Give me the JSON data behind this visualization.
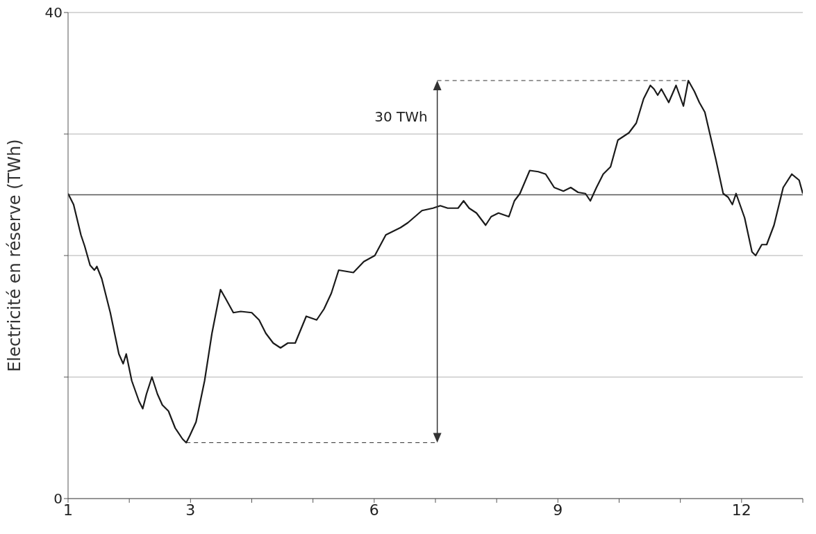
{
  "chart_data": {
    "type": "line",
    "ylabel": "Electricité en réserve (TWh)",
    "x": [
      1.0,
      1.09,
      1.21,
      1.27,
      1.36,
      1.43,
      1.47,
      1.55,
      1.69,
      1.83,
      1.9,
      1.95,
      2.04,
      2.16,
      2.22,
      2.28,
      2.37,
      2.46,
      2.54,
      2.64,
      2.75,
      2.87,
      2.93,
      2.99,
      3.09,
      3.23,
      3.35,
      3.49,
      3.58,
      3.7,
      3.82,
      4.0,
      4.12,
      4.23,
      4.35,
      4.47,
      4.59,
      4.71,
      4.89,
      5.06,
      5.18,
      5.3,
      5.42,
      5.66,
      5.83,
      6.01,
      6.19,
      6.43,
      6.55,
      6.78,
      6.96,
      7.08,
      7.2,
      7.37,
      7.46,
      7.55,
      7.67,
      7.82,
      7.91,
      8.03,
      8.2,
      8.29,
      8.38,
      8.54,
      8.68,
      8.8,
      8.94,
      9.09,
      9.21,
      9.33,
      9.45,
      9.53,
      9.63,
      9.74,
      9.86,
      9.98,
      10.16,
      10.28,
      10.4,
      10.51,
      10.57,
      10.63,
      10.69,
      10.81,
      10.93,
      11.05,
      11.13,
      11.23,
      11.31,
      11.4,
      11.58,
      11.7,
      11.78,
      11.85,
      11.91,
      12.05,
      12.17,
      12.23,
      12.33,
      12.41,
      12.53,
      12.68,
      12.82,
      12.94,
      13.0
    ],
    "series": [
      {
        "color": "#1a1a1a",
        "values": [
          25.1,
          24.2,
          21.7,
          20.8,
          19.2,
          18.8,
          19.1,
          18.1,
          15.3,
          11.9,
          11.1,
          11.9,
          9.7,
          8.0,
          7.4,
          8.6,
          10.0,
          8.6,
          7.7,
          7.2,
          5.8,
          4.9,
          4.6,
          5.2,
          6.3,
          9.7,
          13.6,
          17.2,
          16.4,
          15.3,
          15.4,
          15.3,
          14.7,
          13.6,
          12.8,
          12.4,
          12.8,
          12.8,
          15.0,
          14.7,
          15.6,
          16.9,
          18.8,
          18.6,
          19.5,
          20.0,
          21.7,
          22.3,
          22.7,
          23.7,
          23.9,
          24.1,
          23.9,
          23.9,
          24.5,
          23.9,
          23.5,
          22.5,
          23.2,
          23.5,
          23.2,
          24.5,
          25.1,
          27.0,
          26.9,
          26.7,
          25.6,
          25.3,
          25.6,
          25.2,
          25.1,
          24.5,
          25.6,
          26.7,
          27.3,
          29.5,
          30.1,
          30.9,
          32.9,
          34.0,
          33.7,
          33.2,
          33.7,
          32.6,
          34.0,
          32.3,
          34.4,
          33.5,
          32.6,
          31.8,
          27.9,
          25.1,
          24.8,
          24.2,
          25.1,
          23.1,
          20.3,
          20.0,
          20.9,
          20.9,
          22.5,
          25.6,
          26.7,
          26.2,
          25.1
        ]
      }
    ],
    "xlim": [
      1,
      13
    ],
    "xticks": [
      1,
      {
        "value": 2,
        "label": null
      },
      3,
      {
        "value": 4,
        "label": null
      },
      {
        "value": 5,
        "label": null
      },
      6,
      {
        "value": 7,
        "label": null
      },
      {
        "value": 8,
        "label": null
      },
      9,
      {
        "value": 10,
        "label": null
      },
      {
        "value": 11,
        "label": null
      },
      12,
      {
        "value": 13,
        "label": null
      }
    ],
    "ylim": [
      0,
      40
    ],
    "yticks": [
      0,
      {
        "value": 10,
        "label": null
      },
      {
        "value": 20,
        "label": null
      },
      {
        "value": 30,
        "label": null
      },
      40
    ],
    "grid": "y",
    "ref_lines": [
      {
        "axis": "y",
        "value": 25,
        "color": "#555555"
      }
    ],
    "annotations": [
      "30 TWh"
    ],
    "marker": "none",
    "line_style": "solid",
    "legend": false
  }
}
